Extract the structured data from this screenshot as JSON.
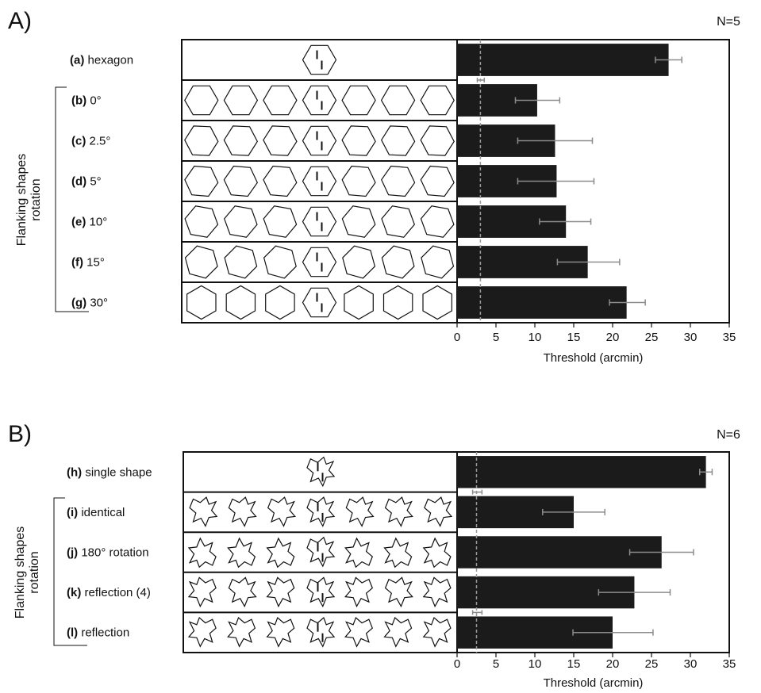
{
  "panels": [
    {
      "letter": "A)",
      "n_label": "N=5",
      "group_label": [
        "Flanking shapes",
        "rotation"
      ],
      "flanker_type": "hexagon",
      "rows": [
        {
          "code": "(a)",
          "label": "hexagon",
          "flankers": false,
          "rotation": 0
        },
        {
          "code": "(b)",
          "label": "0°",
          "flankers": true,
          "rotation": 0
        },
        {
          "code": "(c)",
          "label": "2.5°",
          "flankers": true,
          "rotation": 2.5
        },
        {
          "code": "(d)",
          "label": "5°",
          "flankers": true,
          "rotation": 5
        },
        {
          "code": "(e)",
          "label": "10°",
          "flankers": true,
          "rotation": 10
        },
        {
          "code": "(f)",
          "label": "15°",
          "flankers": true,
          "rotation": 15
        },
        {
          "code": "(g)",
          "label": "30°",
          "flankers": true,
          "rotation": 30
        }
      ]
    },
    {
      "letter": "B)",
      "n_label": "N=6",
      "group_label": [
        "Flanking shapes",
        "rotation"
      ],
      "flanker_type": "irregular",
      "rows": [
        {
          "code": "(h)",
          "label": "single shape",
          "flankers": false,
          "mode": "single"
        },
        {
          "code": "(i)",
          "label": "identical",
          "flankers": true,
          "mode": "identical"
        },
        {
          "code": "(j)",
          "label": "180° rotation",
          "flankers": true,
          "mode": "rot180"
        },
        {
          "code": "(k)",
          "label": "reflection (4)",
          "flankers": true,
          "mode": "reflect4"
        },
        {
          "code": "(l)",
          "label": "reflection",
          "flankers": true,
          "mode": "reflect"
        }
      ]
    }
  ],
  "chart_data": [
    {
      "type": "bar",
      "orientation": "horizontal",
      "categories": [
        "hexagon",
        "0°",
        "2.5°",
        "5°",
        "10°",
        "15°",
        "30°"
      ],
      "values": [
        27.2,
        10.3,
        12.6,
        12.8,
        14.0,
        16.8,
        21.8
      ],
      "error_low": [
        25.5,
        7.5,
        7.8,
        7.8,
        10.6,
        12.9,
        19.6
      ],
      "error_high": [
        28.9,
        13.2,
        17.4,
        17.6,
        17.2,
        20.9,
        24.2
      ],
      "reference_line": 3.0,
      "reference_error": [
        2.6,
        3.5
      ],
      "xlabel": "Threshold (arcmin)",
      "xlim": [
        0,
        35
      ],
      "xticks": [
        0,
        5,
        10,
        15,
        20,
        25,
        30,
        35
      ],
      "bar_color": "#1b1b1b",
      "error_color": "#8c8c8c"
    },
    {
      "type": "bar",
      "orientation": "horizontal",
      "categories": [
        "single shape",
        "identical",
        "180° rotation",
        "reflection (4)",
        "reflection"
      ],
      "values": [
        32.0,
        15.0,
        26.3,
        22.8,
        20.0
      ],
      "error_low": [
        31.2,
        11.0,
        22.2,
        18.2,
        14.9
      ],
      "error_high": [
        32.8,
        19.0,
        30.4,
        27.4,
        25.2
      ],
      "reference_line": 2.5,
      "reference_error": [
        2.0,
        3.2
      ],
      "xlabel": "Threshold (arcmin)",
      "xlim": [
        0,
        35
      ],
      "xticks": [
        0,
        5,
        10,
        15,
        20,
        25,
        30,
        35
      ],
      "bar_color": "#1b1b1b",
      "error_color": "#8c8c8c"
    }
  ]
}
